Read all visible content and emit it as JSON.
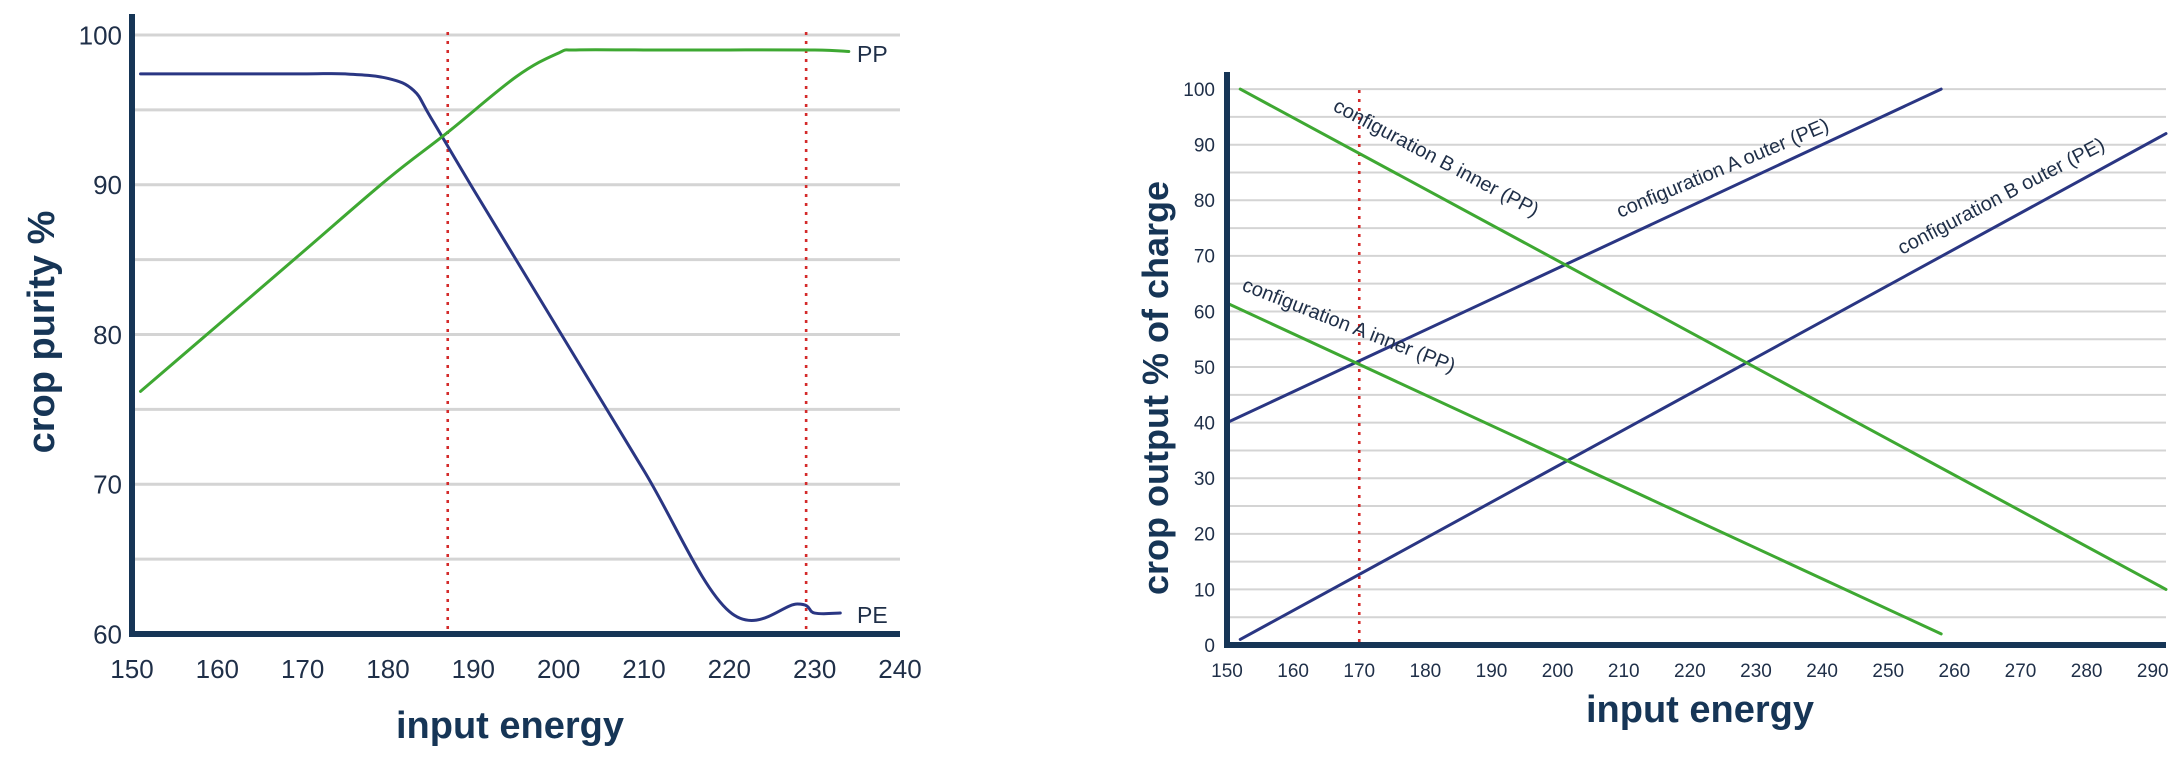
{
  "colors": {
    "axis": "#163556",
    "grid": "#d4d4d4",
    "pe": "#2a3683",
    "pp": "#3ea832",
    "marker": "#d42a2a"
  },
  "chart_data": [
    {
      "type": "line",
      "xlabel": "input energy",
      "ylabel": "crop purity %",
      "xlim": [
        150,
        240
      ],
      "ylim": [
        60,
        101
      ],
      "xticks": [
        150,
        160,
        170,
        180,
        190,
        200,
        210,
        220,
        230,
        240
      ],
      "yticks": [
        60,
        70,
        80,
        90,
        100
      ],
      "grid": "horizontal",
      "vlines": [
        187,
        229
      ],
      "series": [
        {
          "name": "PE",
          "color": "pe",
          "x": [
            151,
            160,
            170,
            175,
            180,
            183,
            185,
            190,
            200,
            210,
            220,
            228,
            230,
            233
          ],
          "y": [
            97.4,
            97.4,
            97.4,
            97.4,
            97.1,
            96.3,
            94.5,
            89.7,
            80.3,
            70.9,
            61.5,
            62.0,
            61.4,
            61.4
          ]
        },
        {
          "name": "PP",
          "color": "pp",
          "x": [
            151,
            160,
            170,
            180,
            187,
            195,
            200,
            202,
            210,
            220,
            230,
            234
          ],
          "y": [
            76.2,
            80.6,
            85.5,
            90.4,
            93.5,
            97.2,
            98.8,
            99.0,
            99.0,
            99.0,
            99.0,
            98.9
          ]
        }
      ]
    },
    {
      "type": "line",
      "xlabel": "input energy",
      "ylabel": "crop output % of charge",
      "xlim": [
        150,
        292
      ],
      "ylim": [
        0,
        102
      ],
      "xticks": [
        150,
        160,
        170,
        180,
        190,
        200,
        210,
        220,
        230,
        240,
        250,
        260,
        270,
        280,
        290
      ],
      "yticks": [
        0,
        10,
        20,
        30,
        40,
        50,
        60,
        70,
        80,
        90,
        100
      ],
      "grid": "horizontal",
      "vlines": [
        170
      ],
      "series": [
        {
          "name": "configuration A outer (PE)",
          "color": "pe",
          "x": [
            150,
            258
          ],
          "y": [
            40,
            100
          ]
        },
        {
          "name": "configuration B outer (PE)",
          "color": "pe",
          "x": [
            152,
            292
          ],
          "y": [
            1,
            92
          ]
        },
        {
          "name": "configuration B inner (PP)",
          "color": "pp",
          "x": [
            152,
            292
          ],
          "y": [
            100,
            10
          ]
        },
        {
          "name": "configuration A inner (PP)",
          "color": "pp",
          "x": [
            150,
            258
          ],
          "y": [
            61.5,
            2
          ]
        }
      ]
    }
  ]
}
